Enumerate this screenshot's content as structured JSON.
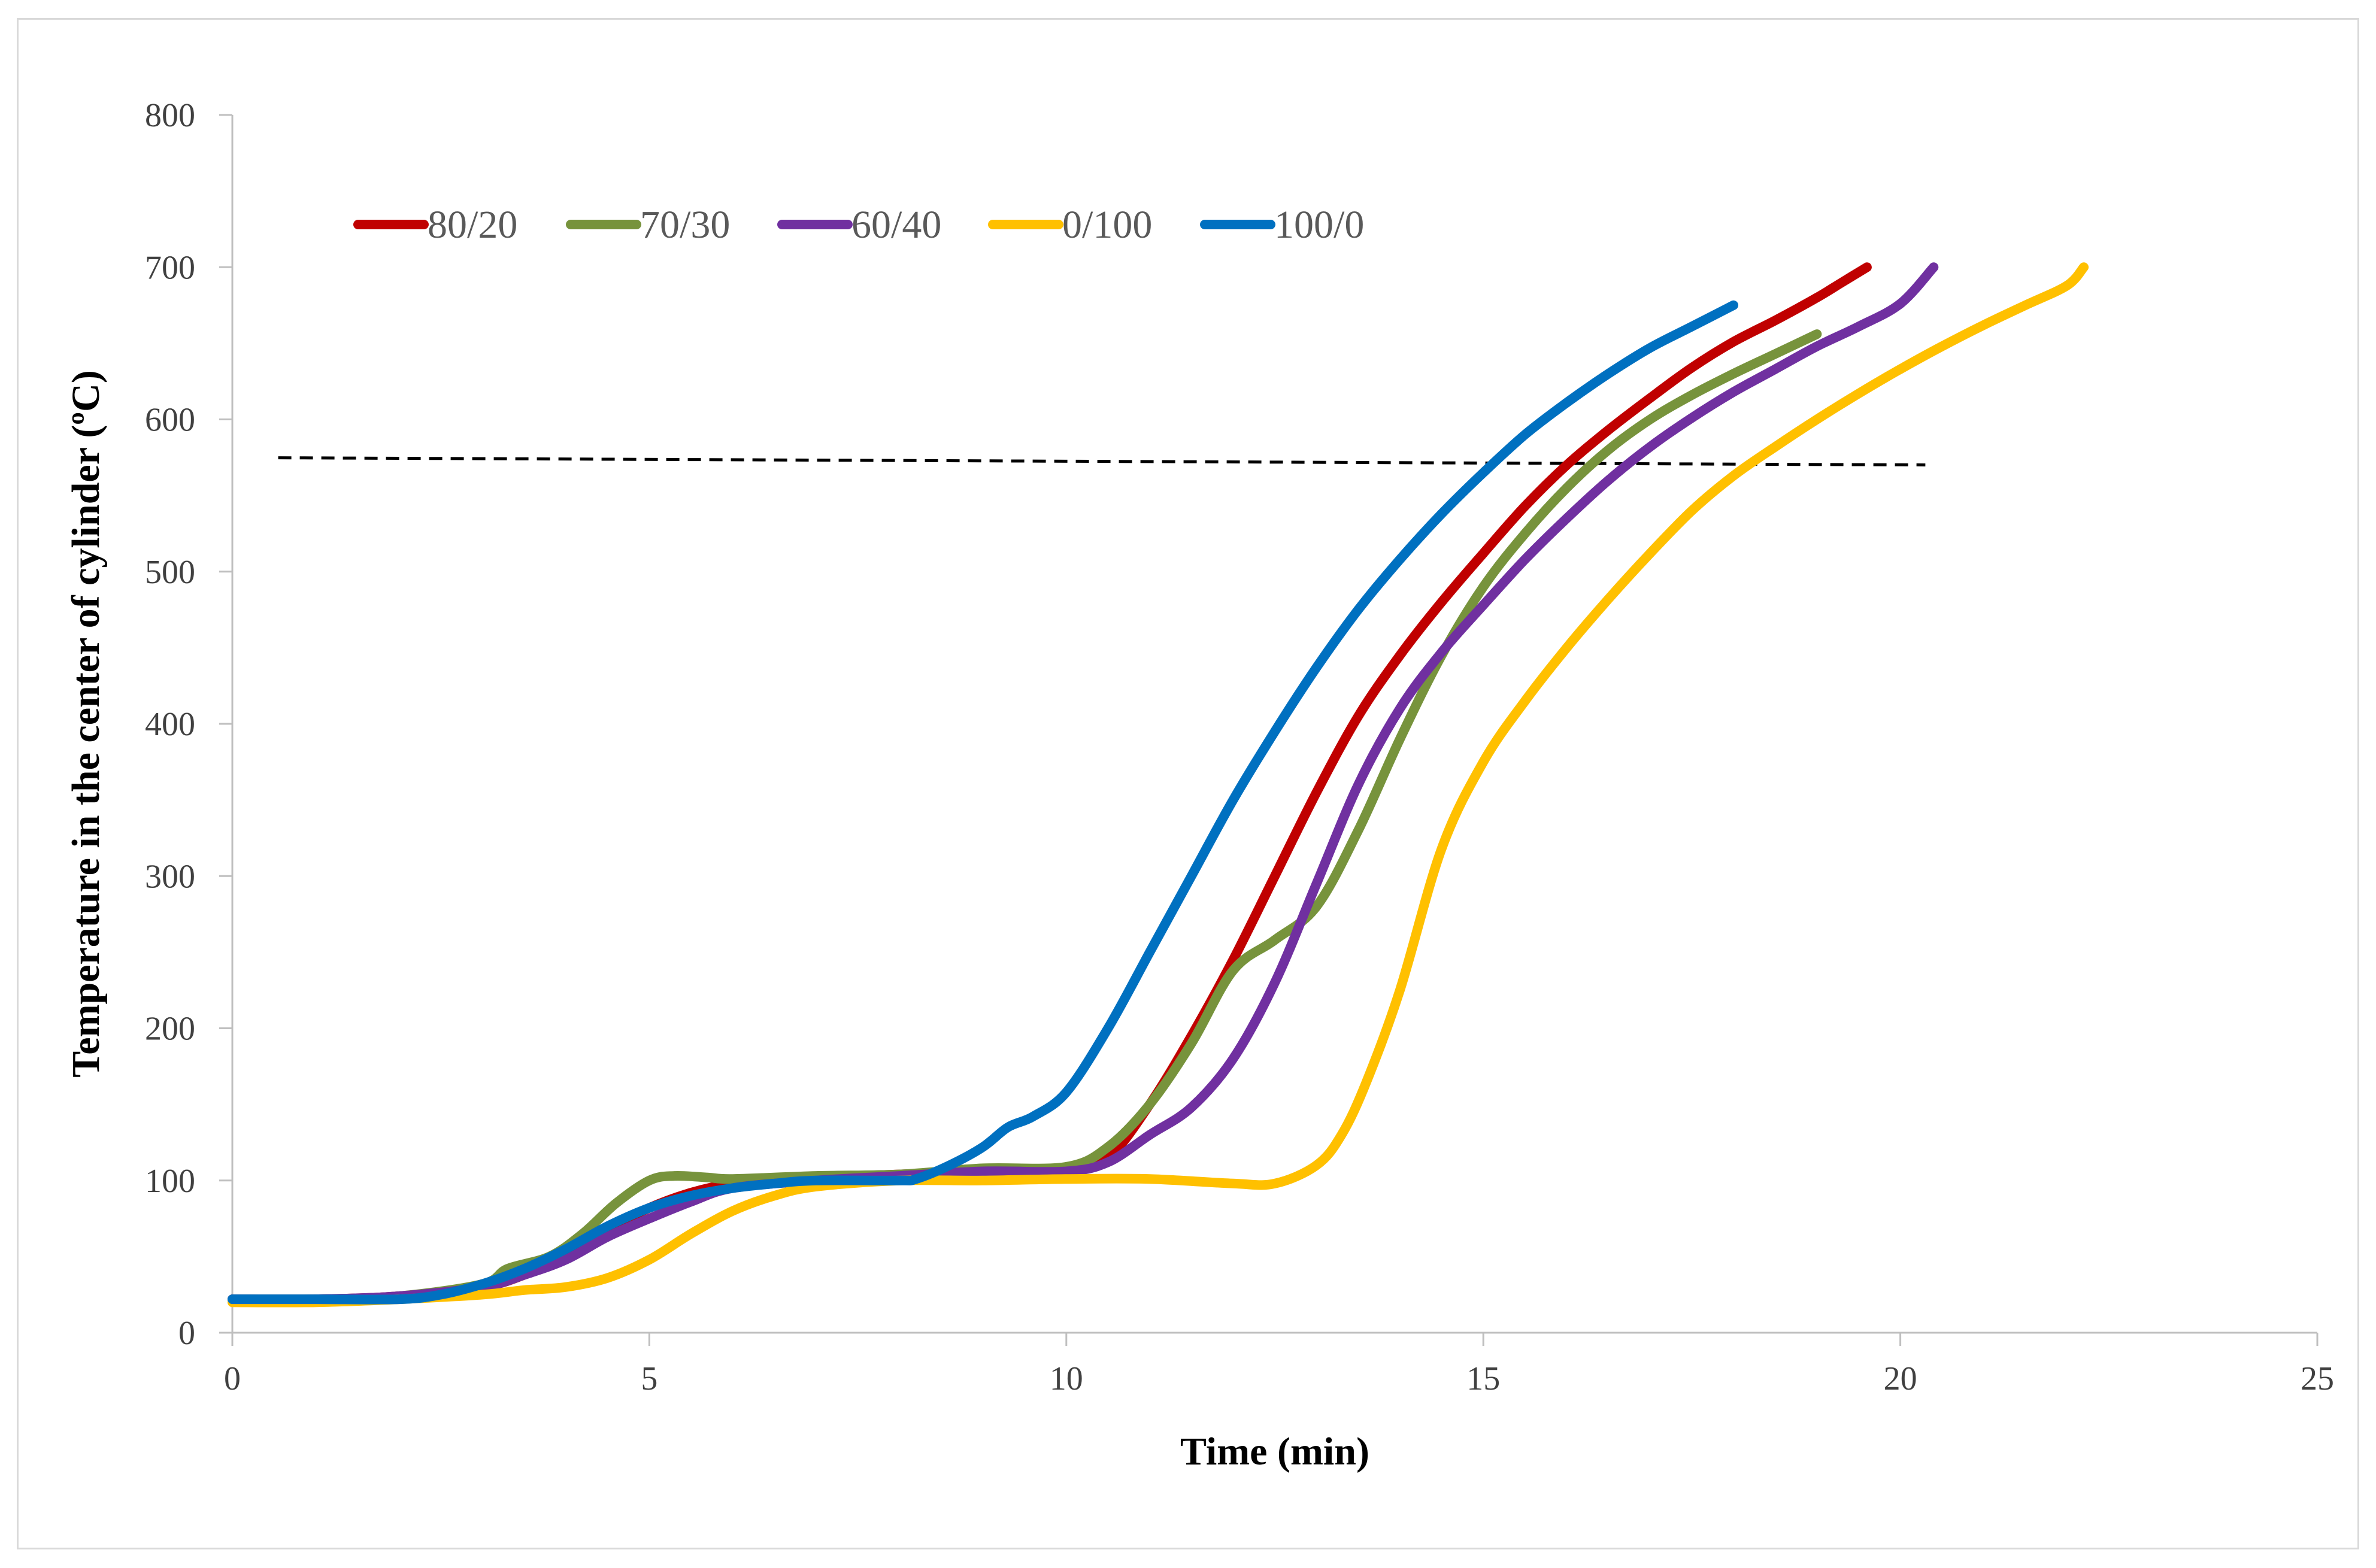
{
  "chart_data": {
    "type": "line",
    "title": "",
    "xlabel": "Time (min)",
    "ylabel": "Temperature in the center of cylinder (ºC)",
    "xlim": [
      0,
      25
    ],
    "ylim": [
      0,
      800
    ],
    "xticks": [
      0,
      5,
      10,
      15,
      20,
      25
    ],
    "yticks": [
      0,
      100,
      200,
      300,
      400,
      500,
      600,
      700,
      800
    ],
    "xtick_labels": [
      "0",
      "5",
      "10",
      "15",
      "20",
      "25"
    ],
    "ytick_labels": [
      "0",
      "100",
      "200",
      "300",
      "400",
      "500",
      "600",
      "700",
      "800"
    ],
    "legend_position": "top-left",
    "series": [
      {
        "name": "80/20",
        "color": "#c00000",
        "x": [
          0,
          1,
          2,
          3,
          3.5,
          4,
          4.5,
          5,
          5.5,
          6,
          6.5,
          7,
          8,
          9,
          10,
          10.5,
          11,
          11.5,
          12,
          12.5,
          13,
          13.5,
          14,
          14.5,
          15,
          15.5,
          16,
          16.5,
          17,
          17.5,
          18,
          18.5,
          19,
          19.3,
          19.6
        ],
        "y": [
          22,
          22,
          24,
          30,
          38,
          50,
          68,
          82,
          92,
          98,
          100,
          102,
          104,
          106,
          107,
          115,
          150,
          195,
          245,
          300,
          355,
          405,
          445,
          480,
          512,
          543,
          570,
          593,
          614,
          634,
          651,
          665,
          680,
          690,
          700
        ]
      },
      {
        "name": "70/30",
        "color": "#77933c",
        "x": [
          0,
          1,
          2,
          3,
          3.3,
          3.8,
          4.2,
          4.6,
          5,
          5.3,
          5.7,
          6,
          7,
          8,
          9,
          10,
          10.5,
          11,
          11.5,
          12,
          12.5,
          13,
          13.5,
          14,
          14.5,
          15,
          15.5,
          16,
          16.5,
          17,
          17.5,
          18,
          18.5,
          19
        ],
        "y": [
          22,
          22,
          24,
          32,
          42,
          50,
          65,
          85,
          100,
          103,
          102,
          101,
          103,
          104,
          108,
          109,
          122,
          150,
          190,
          238,
          258,
          280,
          330,
          390,
          445,
          490,
          525,
          555,
          580,
          600,
          616,
          630,
          643,
          656
        ]
      },
      {
        "name": "60/40",
        "color": "#7030a0",
        "x": [
          0,
          1,
          2,
          3,
          3.5,
          4,
          4.5,
          5,
          5.5,
          6,
          7,
          8,
          9,
          10,
          10.5,
          11,
          11.5,
          12,
          12.5,
          13,
          13.5,
          14,
          14.5,
          15,
          15.5,
          16,
          16.5,
          17,
          17.5,
          18,
          18.5,
          19,
          19.5,
          20,
          20.4
        ],
        "y": [
          22,
          22,
          24,
          30,
          38,
          48,
          63,
          75,
          86,
          95,
          100,
          103,
          106,
          106,
          112,
          130,
          148,
          180,
          230,
          295,
          360,
          410,
          447,
          478,
          508,
          535,
          560,
          582,
          601,
          618,
          633,
          648,
          661,
          676,
          700
        ]
      },
      {
        "name": "0/100",
        "color": "#ffc000",
        "x": [
          0,
          1,
          2,
          3,
          3.5,
          4,
          4.5,
          5,
          5.5,
          6,
          6.5,
          7,
          8,
          9,
          10,
          11,
          12,
          12.5,
          13,
          13.3,
          13.6,
          14,
          14.5,
          15,
          15.5,
          16,
          16.5,
          17,
          17.5,
          18,
          18.5,
          19,
          19.5,
          20,
          20.5,
          21,
          21.5,
          22,
          22.2
        ],
        "y": [
          20,
          20,
          22,
          25,
          28,
          30,
          36,
          48,
          65,
          80,
          90,
          96,
          100,
          100,
          101,
          101,
          98,
          98,
          110,
          130,
          165,
          225,
          318,
          375,
          415,
          450,
          482,
          512,
          540,
          563,
          582,
          600,
          617,
          633,
          648,
          662,
          675,
          688,
          700
        ]
      },
      {
        "name": "100/0",
        "color": "#0070c0",
        "x": [
          0,
          1,
          2,
          2.5,
          3,
          3.5,
          4,
          4.5,
          5,
          5.5,
          6,
          6.5,
          7,
          8,
          8.2,
          8.6,
          9,
          9.3,
          9.6,
          10,
          10.5,
          11,
          11.5,
          12,
          12.5,
          13,
          13.5,
          14,
          14.5,
          15,
          15.5,
          16,
          16.5,
          17,
          17.5,
          18
        ],
        "y": [
          22,
          22,
          22,
          25,
          32,
          42,
          55,
          70,
          82,
          90,
          95,
          98,
          100,
          100,
          101,
          110,
          122,
          135,
          142,
          158,
          200,
          250,
          300,
          350,
          395,
          437,
          475,
          508,
          538,
          565,
          590,
          611,
          630,
          647,
          661,
          675
        ]
      }
    ],
    "reference_line": {
      "y": 574,
      "x_start": 0.55,
      "x_end": 20.3,
      "style": "dashed",
      "color": "#000000"
    }
  }
}
